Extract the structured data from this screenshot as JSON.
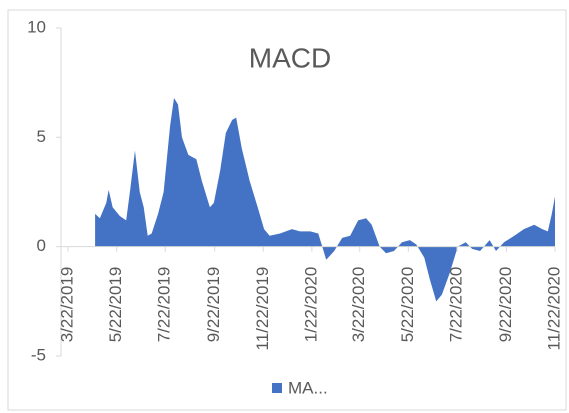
{
  "chart_data": {
    "type": "area",
    "title": "MACD",
    "x": [
      "2019-04-25",
      "2019-05-01",
      "2019-05-09",
      "2019-05-12",
      "2019-05-17",
      "2019-05-26",
      "2019-06-03",
      "2019-06-08",
      "2019-06-14",
      "2019-06-20",
      "2019-06-25",
      "2019-06-30",
      "2019-07-05",
      "2019-07-13",
      "2019-07-20",
      "2019-07-28",
      "2019-08-02",
      "2019-08-07",
      "2019-08-12",
      "2019-08-20",
      "2019-08-30",
      "2019-09-06",
      "2019-09-16",
      "2019-09-21",
      "2019-09-29",
      "2019-10-06",
      "2019-10-14",
      "2019-10-19",
      "2019-10-26",
      "2019-11-05",
      "2019-11-15",
      "2019-11-23",
      "2019-11-30",
      "2019-12-13",
      "2019-12-28",
      "2020-01-07",
      "2020-01-20",
      "2020-01-30",
      "2020-02-04",
      "2020-02-09",
      "2020-02-19",
      "2020-02-29",
      "2020-03-10",
      "2020-03-20",
      "2020-03-30",
      "2020-04-06",
      "2020-04-16",
      "2020-04-24",
      "2020-05-04",
      "2020-05-14",
      "2020-05-24",
      "2020-06-01",
      "2020-06-11",
      "2020-06-18",
      "2020-06-26",
      "2020-07-03",
      "2020-07-13",
      "2020-07-23",
      "2020-08-02",
      "2020-08-10",
      "2020-08-20",
      "2020-09-01",
      "2020-09-09",
      "2020-09-19",
      "2020-10-02",
      "2020-10-14",
      "2020-10-27",
      "2020-11-06",
      "2020-11-13",
      "2020-11-18",
      "2020-11-22"
    ],
    "series": [
      {
        "name": "MA...",
        "color": "#4472c4",
        "values": [
          1.5,
          1.3,
          2.0,
          2.6,
          1.8,
          1.4,
          1.2,
          2.6,
          4.4,
          2.5,
          1.8,
          0.5,
          0.6,
          1.5,
          2.5,
          5.5,
          6.8,
          6.5,
          5.0,
          4.2,
          4.0,
          3.0,
          1.8,
          2.0,
          3.5,
          5.2,
          5.8,
          5.9,
          4.5,
          3.0,
          1.8,
          0.8,
          0.5,
          0.6,
          0.8,
          0.7,
          0.7,
          0.6,
          0.0,
          -0.6,
          -0.2,
          0.4,
          0.5,
          1.2,
          1.3,
          1.0,
          0.0,
          -0.3,
          -0.2,
          0.2,
          0.3,
          0.1,
          -0.5,
          -1.5,
          -2.5,
          -2.2,
          -1.2,
          0.0,
          0.2,
          -0.1,
          -0.2,
          0.3,
          -0.2,
          0.2,
          0.5,
          0.8,
          1.0,
          0.8,
          0.7,
          1.5,
          2.3
        ]
      }
    ],
    "xlim": [
      "2019-03-22",
      "2020-11-22"
    ],
    "xticks": [
      {
        "value": "2019-03-22",
        "label": "3/22/2019"
      },
      {
        "value": "2019-05-22",
        "label": "5/22/2019"
      },
      {
        "value": "2019-07-22",
        "label": "7/22/2019"
      },
      {
        "value": "2019-09-22",
        "label": "9/22/2019"
      },
      {
        "value": "2019-11-22",
        "label": "11/22/2019"
      },
      {
        "value": "2020-01-22",
        "label": "1/22/2020"
      },
      {
        "value": "2020-03-22",
        "label": "3/22/2020"
      },
      {
        "value": "2020-05-22",
        "label": "5/22/2020"
      },
      {
        "value": "2020-07-22",
        "label": "7/22/2020"
      },
      {
        "value": "2020-09-22",
        "label": "9/22/2020"
      },
      {
        "value": "2020-11-22",
        "label": "11/22/2020"
      }
    ],
    "ylim": [
      -5,
      10
    ],
    "yticks": [
      -5,
      0,
      5,
      10
    ],
    "legend": "bottom"
  }
}
